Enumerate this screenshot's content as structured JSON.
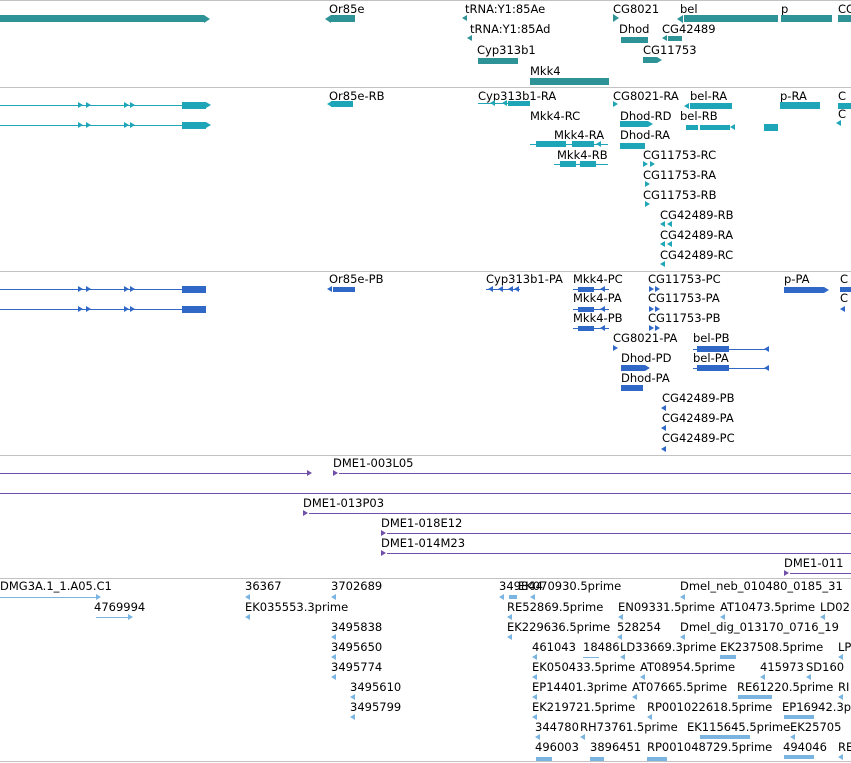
{
  "colors": {
    "gene_track": "#2e9396",
    "transcript_track": "#1ea6b8",
    "protein_track": "#3068c8",
    "clone_track": "#7050a8",
    "est_track": "#7ab4e0",
    "separator": "#c2c2c2"
  },
  "tracks": {
    "genes": {
      "labels": [
        "Or85e",
        "tRNA:Y1:85Ae",
        "tRNA:Y1:85Ad",
        "Cyp313b1",
        "Mkk4",
        "CG8021",
        "Dhod",
        "bel",
        "CG42489",
        "CG11753",
        "p",
        "CG"
      ]
    },
    "transcripts": {
      "labels": [
        "Or85e-RB",
        "Cyp313b1-RA",
        "Mkk4-RC",
        "Mkk4-RA",
        "Mkk4-RB",
        "CG8021-RA",
        "Dhod-RD",
        "Dhod-RA",
        "bel-RA",
        "bel-RB",
        "CG11753-RC",
        "CG11753-RA",
        "CG11753-RB",
        "CG42489-RB",
        "CG42489-RA",
        "CG42489-RC",
        "p-RA",
        "C",
        "C"
      ]
    },
    "proteins": {
      "labels": [
        "Or85e-PB",
        "Cyp313b1-PA",
        "Mkk4-PC",
        "Mkk4-PA",
        "Mkk4-PB",
        "CG11753-PC",
        "CG11753-PA",
        "CG11753-PB",
        "CG8021-PA",
        "Dhod-PD",
        "Dhod-PA",
        "bel-PB",
        "bel-PA",
        "CG42489-PB",
        "CG42489-PA",
        "CG42489-PC",
        "p-PA",
        "C",
        "C"
      ]
    },
    "clones": {
      "labels": [
        "DME1-003L05",
        "DME1-013P03",
        "DME1-018E12",
        "DME1-014M23",
        "DME1-011"
      ]
    },
    "ests": {
      "labels": [
        "DMG3A.1_1.A05.C1",
        "4769994",
        "36367",
        "EK035553.3prime",
        "3702689",
        "3495838",
        "3495650",
        "3495774",
        "3495610",
        "3495799",
        "349844",
        "EK070930.5prime",
        "RE52869.5prime",
        "EN09331.5prime",
        "EK229636.5prime",
        "528254",
        "461043",
        "18486",
        "LD33669.3prime",
        "EK050433.5prime",
        "AT08954.5prime",
        "EP14401.3prime",
        "AT07665.5prime",
        "EK219721.5prime",
        "RP001022618.5prime",
        "344780",
        "RH73761.5prime",
        "496003",
        "3896451",
        "RP001048729.5prime",
        "Dmel_neb_010480_0185_31",
        "AT10473.5prime",
        "LD02",
        "Dmel_dig_013170_0716_19",
        "EK237508.5prime",
        "415973",
        "SD160",
        "RE61220.5prime",
        "RI",
        "EP16942.3p",
        "EK115645.5prime",
        "EK25705",
        "494046",
        "RE",
        "LP"
      ]
    }
  }
}
